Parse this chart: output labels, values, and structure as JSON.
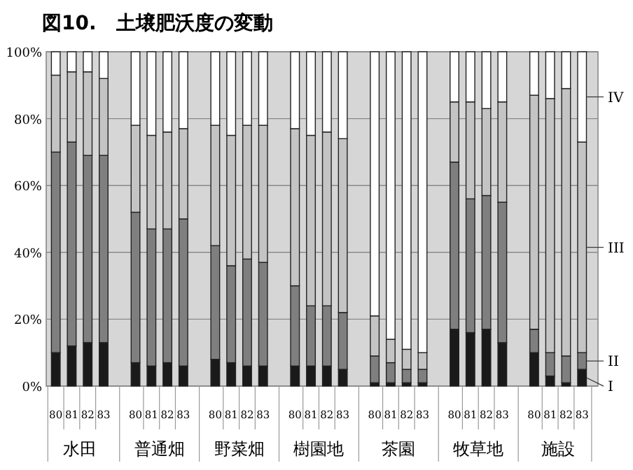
{
  "chart_data": {
    "type": "bar",
    "title": "図10.　土壌肥沃度の変動",
    "stacked": true,
    "categories": [
      "80",
      "81",
      "82",
      "83",
      null,
      "80",
      "81",
      "82",
      "83",
      null,
      "80",
      "81",
      "82",
      "83",
      null,
      "80",
      "81",
      "82",
      "83",
      null,
      "80",
      "81",
      "82",
      "83",
      null,
      "80",
      "81",
      "82",
      "83",
      null,
      "80",
      "81",
      "82",
      "83"
    ],
    "annotations": [
      "水田",
      "普通畑",
      "野菜畑",
      "樹園地",
      "茶園",
      "牧草地",
      "施設"
    ],
    "ylim": [
      0,
      100
    ],
    "yticks": [
      {
        "value": 0,
        "label": "0%"
      },
      {
        "value": 20,
        "label": "20%"
      },
      {
        "value": 40,
        "label": "40%"
      },
      {
        "value": 60,
        "label": "60%"
      },
      {
        "value": 80,
        "label": "80%"
      },
      {
        "value": 100,
        "label": "100%"
      }
    ],
    "grid": "y",
    "series": [
      {
        "name": "I",
        "color": "#1a1a1a",
        "values": [
          10,
          12,
          13,
          13,
          null,
          7,
          6,
          7,
          6,
          null,
          8,
          7,
          6,
          6,
          null,
          6,
          6,
          6,
          5,
          null,
          1,
          1,
          1,
          1,
          null,
          17,
          16,
          17,
          13,
          null,
          10,
          3,
          1,
          5
        ]
      },
      {
        "name": "II",
        "color": "#7f7f7f",
        "values": [
          60,
          61,
          56,
          56,
          null,
          45,
          41,
          40,
          44,
          null,
          34,
          29,
          32,
          31,
          null,
          24,
          18,
          18,
          17,
          null,
          8,
          6,
          4,
          4,
          null,
          50,
          40,
          40,
          42,
          null,
          7,
          7,
          8,
          5
        ]
      },
      {
        "name": "III",
        "color": "#c4c4c4",
        "values": [
          23,
          21,
          25,
          23,
          null,
          26,
          28,
          29,
          27,
          null,
          36,
          39,
          40,
          41,
          null,
          47,
          51,
          52,
          52,
          null,
          12,
          7,
          6,
          5,
          null,
          18,
          29,
          26,
          30,
          null,
          70,
          76,
          80,
          63
        ]
      },
      {
        "name": "IV",
        "color": "#ffffff",
        "values": [
          7,
          6,
          6,
          8,
          null,
          22,
          25,
          24,
          23,
          null,
          22,
          25,
          22,
          22,
          null,
          23,
          25,
          24,
          26,
          null,
          79,
          86,
          89,
          90,
          null,
          15,
          15,
          17,
          15,
          null,
          13,
          14,
          11,
          27
        ]
      }
    ]
  }
}
